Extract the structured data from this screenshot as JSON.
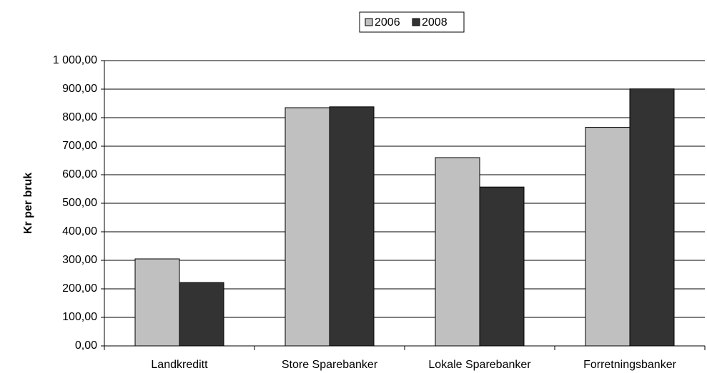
{
  "chart_data": {
    "type": "bar",
    "y_label": "Kr per bruk",
    "categories": [
      "Landkreditt",
      "Store Sparebanker",
      "Lokale Sparebanker",
      "Forretningsbanker"
    ],
    "series": [
      {
        "name": "2006",
        "color": "#c0c0c0",
        "values": [
          305,
          835,
          660,
          766
        ]
      },
      {
        "name": "2008",
        "color": "#333333",
        "values": [
          222,
          838,
          557,
          901
        ]
      }
    ],
    "ylim": [
      0,
      1000
    ],
    "yticks": [
      {
        "value": 0,
        "label": "0,00"
      },
      {
        "value": 100,
        "label": "100,00"
      },
      {
        "value": 200,
        "label": "200,00"
      },
      {
        "value": 300,
        "label": "300,00"
      },
      {
        "value": 400,
        "label": "400,00"
      },
      {
        "value": 500,
        "label": "500,00"
      },
      {
        "value": 600,
        "label": "600,00"
      },
      {
        "value": 700,
        "label": "700,00"
      },
      {
        "value": 800,
        "label": "800,00"
      },
      {
        "value": 900,
        "label": "900,00"
      },
      {
        "value": 1000,
        "label": "1 000,00"
      }
    ],
    "grid": true,
    "legend": "top"
  }
}
